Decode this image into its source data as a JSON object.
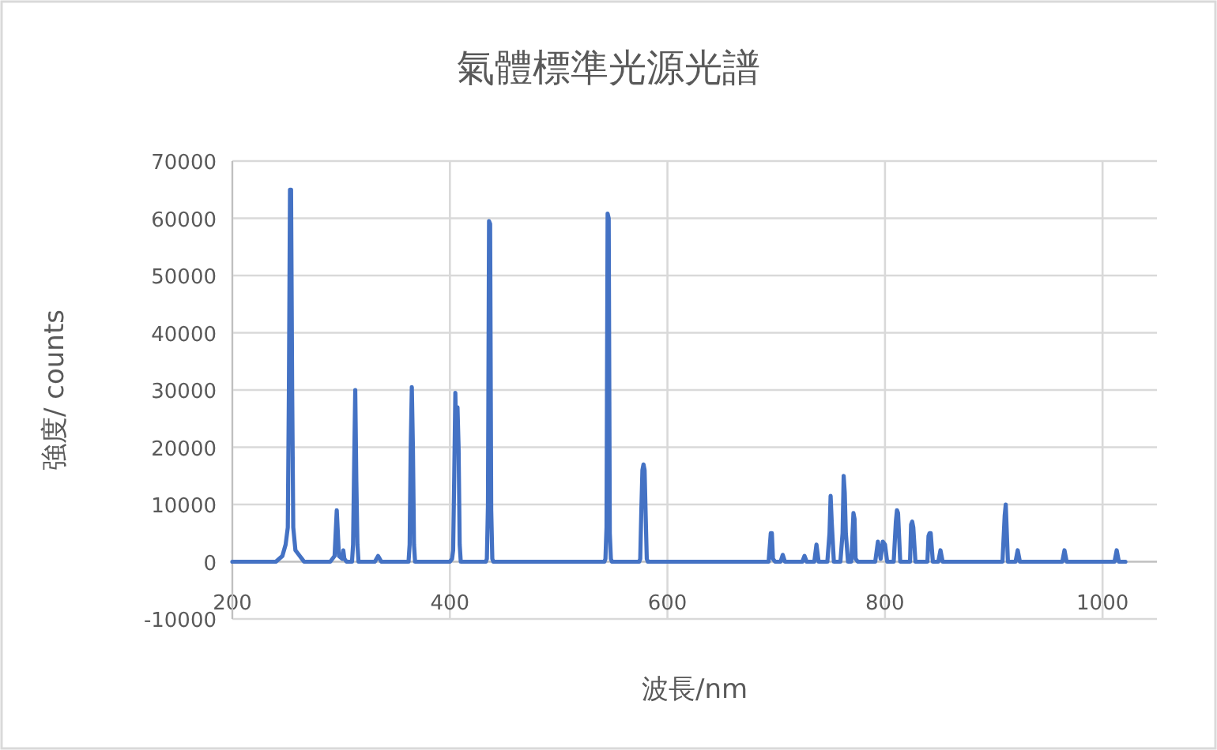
{
  "chart_data": {
    "type": "line",
    "title": "氣體標準光源光譜",
    "xlabel": "波長/nm",
    "ylabel": "強度/ counts",
    "x": [
      200,
      240,
      246,
      249,
      251,
      252,
      253,
      253.5,
      254,
      255,
      256,
      258,
      262,
      264,
      266,
      290,
      294,
      295,
      296,
      297,
      298,
      301,
      302,
      303,
      305,
      310,
      311,
      312,
      313,
      314,
      315,
      316,
      331,
      334,
      337,
      362,
      363,
      364,
      365,
      366,
      367,
      368,
      400,
      402,
      403,
      404,
      405,
      406,
      407,
      408,
      409,
      410,
      433,
      434,
      435,
      436,
      437,
      438,
      439,
      440,
      542,
      543,
      544,
      545,
      546,
      547,
      548,
      549,
      574,
      575,
      576,
      577,
      578,
      579,
      580,
      581,
      582,
      693,
      695,
      696,
      697,
      699,
      704,
      706,
      708,
      724,
      726,
      728,
      735,
      737,
      739,
      747,
      749,
      750,
      751,
      753,
      759,
      761,
      762,
      763,
      764,
      766,
      769,
      771,
      772,
      773,
      775,
      791,
      793.5,
      796,
      798,
      800,
      802,
      808,
      810,
      811,
      812,
      814,
      823,
      824,
      825,
      826,
      828,
      839,
      840,
      841,
      842,
      844,
      849,
      851,
      853,
      908,
      910,
      911,
      913,
      920,
      922,
      924,
      963,
      965,
      967,
      1011,
      1013,
      1015,
      1021
    ],
    "series": [
      {
        "color": "#4472c4",
        "values": [
          0,
          0,
          1000,
          3000,
          6000,
          30000,
          65000,
          65000,
          65000,
          30000,
          6000,
          2000,
          1000,
          500,
          0,
          0,
          1000,
          5000,
          9000,
          5000,
          1000,
          500,
          2000,
          500,
          0,
          0,
          3000,
          17000,
          30000,
          14000,
          3000,
          0,
          0,
          1000,
          0,
          0,
          3000,
          20000,
          30500,
          20000,
          3000,
          0,
          0,
          500,
          2000,
          15000,
          29500,
          20000,
          27000,
          20000,
          3000,
          0,
          0,
          500,
          10000,
          59500,
          59000,
          9000,
          500,
          0,
          0,
          500,
          6000,
          60800,
          60000,
          5000,
          500,
          0,
          0,
          500,
          9000,
          16000,
          17000,
          16000,
          8000,
          500,
          0,
          0,
          5000,
          5000,
          500,
          0,
          0,
          1200,
          0,
          0,
          1000,
          0,
          0,
          3000,
          0,
          0,
          5000,
          11500,
          7000,
          0,
          0,
          5000,
          15000,
          12000,
          5000,
          0,
          0,
          8500,
          7500,
          500,
          0,
          0,
          3500,
          500,
          3500,
          3000,
          0,
          0,
          7000,
          9000,
          8500,
          0,
          0,
          6500,
          7000,
          6000,
          0,
          0,
          4500,
          5000,
          5000,
          0,
          0,
          2000,
          0,
          0,
          8000,
          10000,
          0,
          0,
          2000,
          0,
          0,
          2000,
          0,
          0,
          2000,
          0,
          0
        ]
      }
    ],
    "xlim": [
      200,
      1050
    ],
    "xticks": [
      200,
      400,
      600,
      800,
      1000
    ],
    "ylim": [
      -10000,
      70000
    ],
    "yticks": [
      -10000,
      0,
      10000,
      20000,
      30000,
      40000,
      50000,
      60000,
      70000
    ],
    "grid": true,
    "marker": "none",
    "line_style": "solid"
  }
}
